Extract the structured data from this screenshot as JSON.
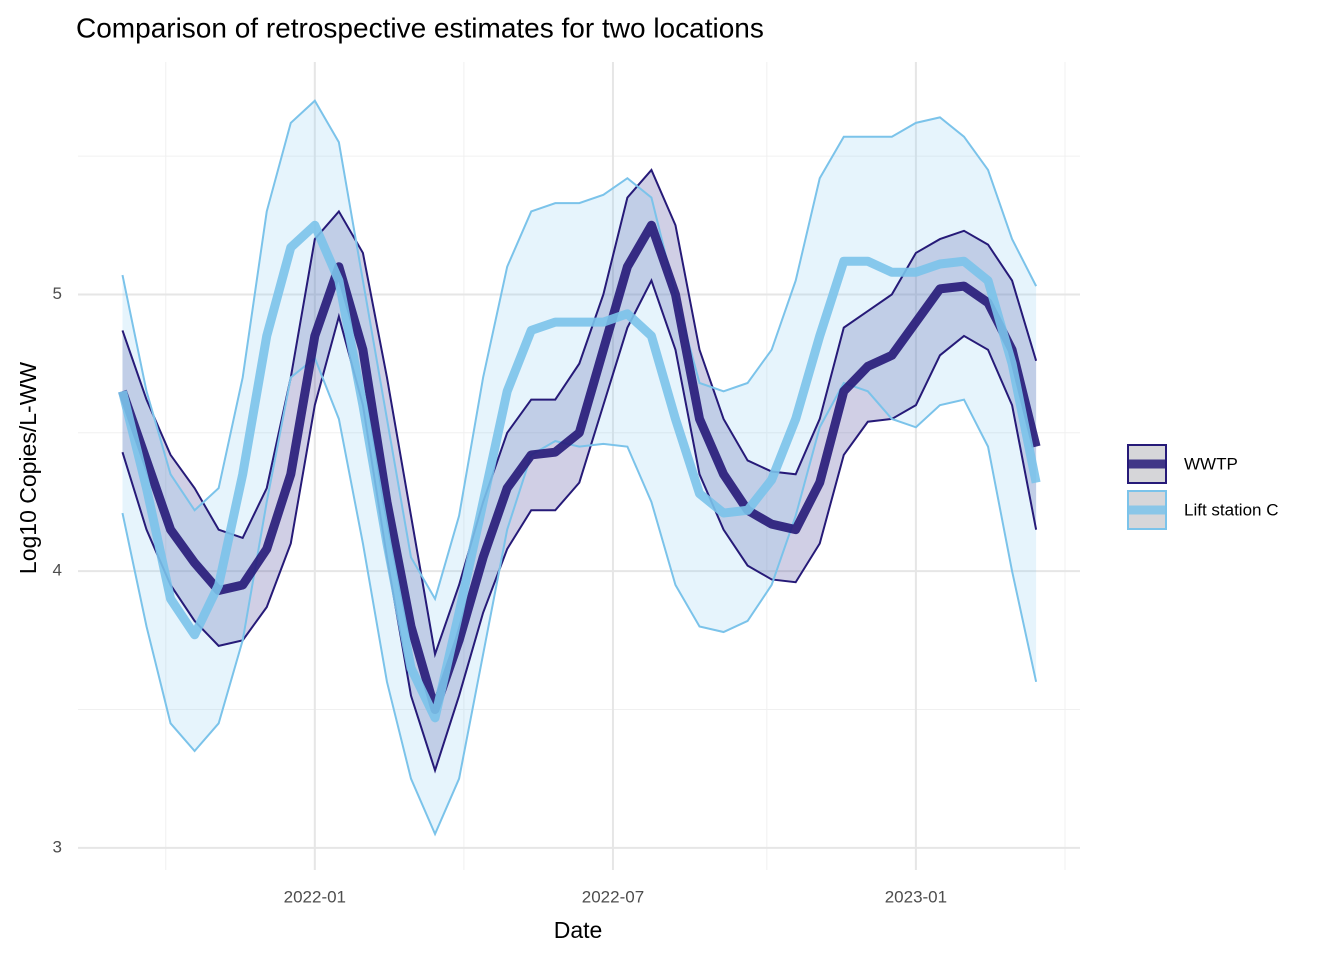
{
  "chart_data": {
    "type": "ribbon-line",
    "title": "Comparison of retrospective estimates for two locations",
    "xlabel": "Date",
    "ylabel": "Log10 Copies/L-WW",
    "xlim": [
      2021.606,
      2023.273
    ],
    "ylim": [
      2.92,
      5.84
    ],
    "xticks": [
      {
        "value": 2022.0,
        "label": "2022-01"
      },
      {
        "value": 2022.496,
        "label": "2022-07"
      },
      {
        "value": 2023.0,
        "label": "2023-01"
      }
    ],
    "yticks": [
      3,
      4,
      5
    ],
    "grid": true,
    "legend": "right",
    "x": [
      2021.68,
      2021.72,
      2021.76,
      2021.8,
      2021.84,
      2021.88,
      2021.92,
      2021.96,
      2022.0,
      2022.04,
      2022.08,
      2022.12,
      2022.16,
      2022.2,
      2022.24,
      2022.28,
      2022.32,
      2022.36,
      2022.4,
      2022.44,
      2022.48,
      2022.52,
      2022.56,
      2022.6,
      2022.64,
      2022.68,
      2022.72,
      2022.76,
      2022.8,
      2022.84,
      2022.88,
      2022.92,
      2022.96,
      2023.0,
      2023.04,
      2023.08,
      2023.12,
      2023.16,
      2023.2
    ],
    "series": [
      {
        "name": "WWTP",
        "color": "#261a78",
        "band_color": "#2a2488",
        "band_opacity": 0.22,
        "values": [
          4.65,
          4.4,
          4.15,
          4.03,
          3.93,
          3.95,
          4.08,
          4.35,
          4.85,
          5.1,
          4.8,
          4.25,
          3.8,
          3.5,
          3.75,
          4.05,
          4.3,
          4.42,
          4.43,
          4.5,
          4.8,
          5.1,
          5.25,
          5.0,
          4.55,
          4.35,
          4.22,
          4.17,
          4.15,
          4.32,
          4.65,
          4.74,
          4.78,
          4.9,
          5.02,
          5.03,
          4.97,
          4.8,
          4.45
        ],
        "lower": [
          4.43,
          4.15,
          3.95,
          3.82,
          3.73,
          3.75,
          3.87,
          4.1,
          4.6,
          4.92,
          4.6,
          4.05,
          3.55,
          3.28,
          3.55,
          3.85,
          4.08,
          4.22,
          4.22,
          4.32,
          4.6,
          4.88,
          5.05,
          4.8,
          4.35,
          4.15,
          4.02,
          3.97,
          3.96,
          4.1,
          4.42,
          4.54,
          4.55,
          4.6,
          4.78,
          4.85,
          4.8,
          4.6,
          4.15
        ],
        "upper": [
          4.87,
          4.62,
          4.42,
          4.3,
          4.15,
          4.12,
          4.3,
          4.7,
          5.2,
          5.3,
          5.15,
          4.7,
          4.2,
          3.7,
          3.95,
          4.25,
          4.5,
          4.62,
          4.62,
          4.75,
          5.0,
          5.35,
          5.45,
          5.25,
          4.8,
          4.55,
          4.4,
          4.36,
          4.35,
          4.55,
          4.88,
          4.94,
          5.0,
          5.15,
          5.2,
          5.23,
          5.18,
          5.05,
          4.76
        ]
      },
      {
        "name": "Lift station C",
        "color": "#7bc3ea",
        "band_color": "#8ccbf0",
        "band_opacity": 0.22,
        "values": [
          4.65,
          4.3,
          3.9,
          3.77,
          3.95,
          4.35,
          4.85,
          5.17,
          5.25,
          5.05,
          4.6,
          4.1,
          3.65,
          3.47,
          3.85,
          4.25,
          4.65,
          4.87,
          4.9,
          4.9,
          4.9,
          4.93,
          4.85,
          4.55,
          4.28,
          4.21,
          4.22,
          4.33,
          4.55,
          4.85,
          5.12,
          5.12,
          5.08,
          5.08,
          5.11,
          5.12,
          5.05,
          4.75,
          4.32
        ],
        "lower": [
          4.21,
          3.8,
          3.45,
          3.35,
          3.45,
          3.75,
          4.25,
          4.7,
          4.77,
          4.55,
          4.1,
          3.6,
          3.25,
          3.05,
          3.25,
          3.7,
          4.15,
          4.42,
          4.47,
          4.45,
          4.46,
          4.45,
          4.25,
          3.95,
          3.8,
          3.78,
          3.82,
          3.95,
          4.2,
          4.52,
          4.68,
          4.65,
          4.55,
          4.52,
          4.6,
          4.62,
          4.45,
          4.0,
          3.6
        ],
        "upper": [
          5.07,
          4.65,
          4.35,
          4.22,
          4.3,
          4.7,
          5.3,
          5.62,
          5.7,
          5.55,
          5.05,
          4.55,
          4.05,
          3.9,
          4.2,
          4.7,
          5.1,
          5.3,
          5.33,
          5.33,
          5.36,
          5.42,
          5.35,
          5.0,
          4.68,
          4.65,
          4.68,
          4.8,
          5.05,
          5.42,
          5.57,
          5.57,
          5.57,
          5.62,
          5.64,
          5.57,
          5.45,
          5.2,
          5.03
        ]
      }
    ]
  }
}
